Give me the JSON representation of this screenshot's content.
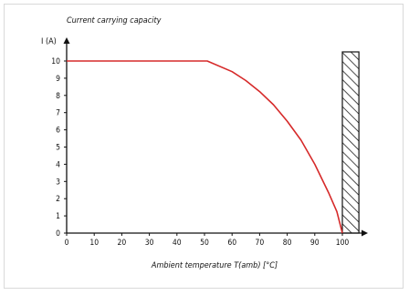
{
  "chart_data": {
    "type": "line",
    "title": "Current carrying capacity",
    "ylabel": "I (A)",
    "xlabel": "Ambient temperature T(amb) [°C]",
    "x_ticks": [
      0,
      10,
      20,
      30,
      40,
      50,
      60,
      70,
      80,
      90,
      100
    ],
    "y_ticks": [
      0,
      1,
      2,
      3,
      4,
      5,
      6,
      7,
      8,
      9,
      10
    ],
    "xlim": [
      0,
      105
    ],
    "ylim": [
      0,
      11
    ],
    "series": [
      {
        "color": "#d62a2a",
        "points": [
          [
            0,
            10
          ],
          [
            51,
            10
          ],
          [
            60,
            9.38
          ],
          [
            65,
            8.86
          ],
          [
            70,
            8.22
          ],
          [
            75,
            7.46
          ],
          [
            80,
            6.5
          ],
          [
            85,
            5.4
          ],
          [
            90,
            4.0
          ],
          [
            95,
            2.35
          ],
          [
            98,
            1.25
          ],
          [
            100,
            0
          ]
        ]
      }
    ],
    "limit_region": {
      "x_from": 100,
      "x_to": 106,
      "style": "hatched"
    },
    "grid": false
  }
}
